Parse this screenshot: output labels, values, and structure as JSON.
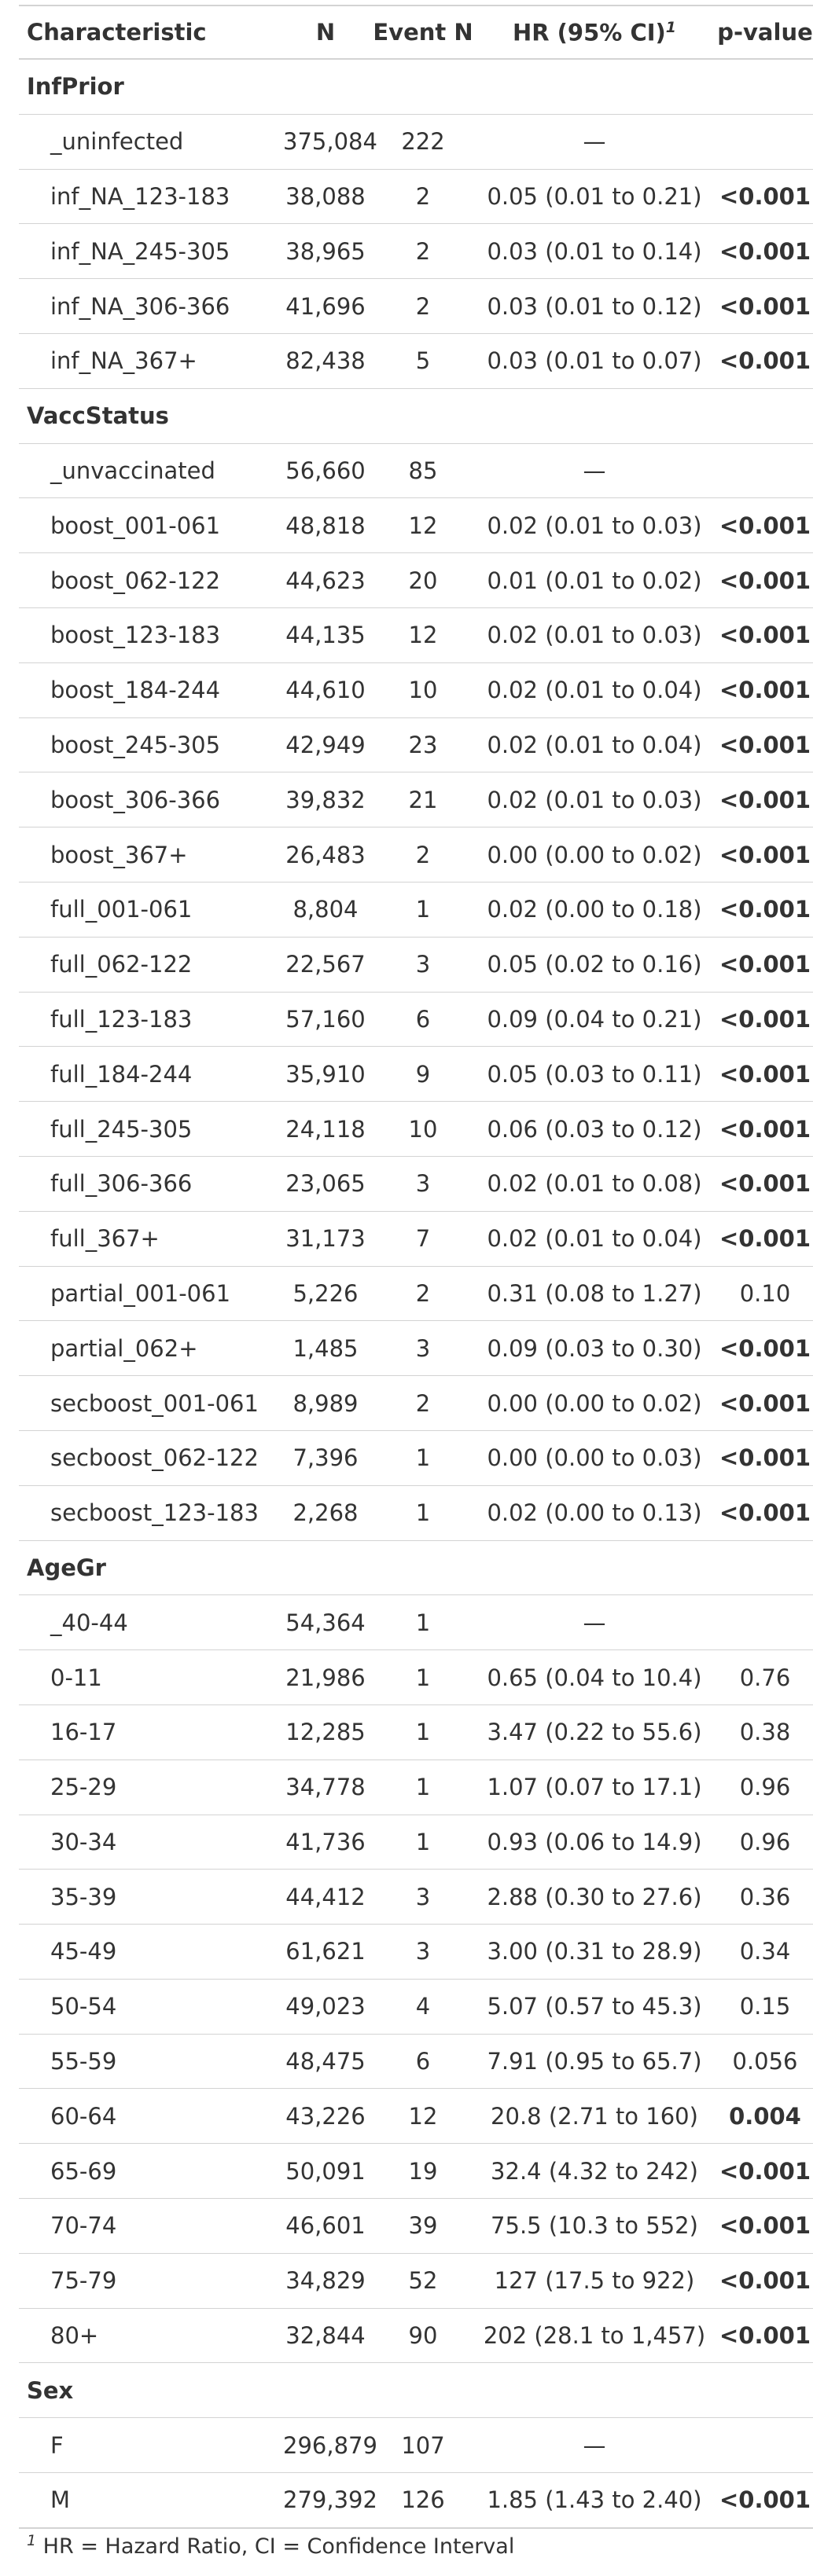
{
  "header": {
    "characteristic": "Characteristic",
    "n": "N",
    "event_n": "Event N",
    "hr": "HR (95% CI)",
    "hr_footnote_mark": "1",
    "p_value": "p-value"
  },
  "rows": [
    {
      "group": "InfPrior"
    },
    {
      "label": "_uninfected",
      "n": "375,084",
      "event": "222",
      "hr": "—",
      "p": ""
    },
    {
      "label": "inf_NA_123-183",
      "n": "38,088",
      "event": "2",
      "hr": "0.05 (0.01 to 0.21)",
      "p": "<0.001",
      "sig": true
    },
    {
      "label": "inf_NA_245-305",
      "n": "38,965",
      "event": "2",
      "hr": "0.03 (0.01 to 0.14)",
      "p": "<0.001",
      "sig": true
    },
    {
      "label": "inf_NA_306-366",
      "n": "41,696",
      "event": "2",
      "hr": "0.03 (0.01 to 0.12)",
      "p": "<0.001",
      "sig": true
    },
    {
      "label": "inf_NA_367+",
      "n": "82,438",
      "event": "5",
      "hr": "0.03 (0.01 to 0.07)",
      "p": "<0.001",
      "sig": true
    },
    {
      "group": "VaccStatus"
    },
    {
      "label": "_unvaccinated",
      "n": "56,660",
      "event": "85",
      "hr": "—",
      "p": ""
    },
    {
      "label": "boost_001-061",
      "n": "48,818",
      "event": "12",
      "hr": "0.02 (0.01 to 0.03)",
      "p": "<0.001",
      "sig": true
    },
    {
      "label": "boost_062-122",
      "n": "44,623",
      "event": "20",
      "hr": "0.01 (0.01 to 0.02)",
      "p": "<0.001",
      "sig": true
    },
    {
      "label": "boost_123-183",
      "n": "44,135",
      "event": "12",
      "hr": "0.02 (0.01 to 0.03)",
      "p": "<0.001",
      "sig": true
    },
    {
      "label": "boost_184-244",
      "n": "44,610",
      "event": "10",
      "hr": "0.02 (0.01 to 0.04)",
      "p": "<0.001",
      "sig": true
    },
    {
      "label": "boost_245-305",
      "n": "42,949",
      "event": "23",
      "hr": "0.02 (0.01 to 0.04)",
      "p": "<0.001",
      "sig": true
    },
    {
      "label": "boost_306-366",
      "n": "39,832",
      "event": "21",
      "hr": "0.02 (0.01 to 0.03)",
      "p": "<0.001",
      "sig": true
    },
    {
      "label": "boost_367+",
      "n": "26,483",
      "event": "2",
      "hr": "0.00 (0.00 to 0.02)",
      "p": "<0.001",
      "sig": true
    },
    {
      "label": "full_001-061",
      "n": "8,804",
      "event": "1",
      "hr": "0.02 (0.00 to 0.18)",
      "p": "<0.001",
      "sig": true
    },
    {
      "label": "full_062-122",
      "n": "22,567",
      "event": "3",
      "hr": "0.05 (0.02 to 0.16)",
      "p": "<0.001",
      "sig": true
    },
    {
      "label": "full_123-183",
      "n": "57,160",
      "event": "6",
      "hr": "0.09 (0.04 to 0.21)",
      "p": "<0.001",
      "sig": true
    },
    {
      "label": "full_184-244",
      "n": "35,910",
      "event": "9",
      "hr": "0.05 (0.03 to 0.11)",
      "p": "<0.001",
      "sig": true
    },
    {
      "label": "full_245-305",
      "n": "24,118",
      "event": "10",
      "hr": "0.06 (0.03 to 0.12)",
      "p": "<0.001",
      "sig": true
    },
    {
      "label": "full_306-366",
      "n": "23,065",
      "event": "3",
      "hr": "0.02 (0.01 to 0.08)",
      "p": "<0.001",
      "sig": true
    },
    {
      "label": "full_367+",
      "n": "31,173",
      "event": "7",
      "hr": "0.02 (0.01 to 0.04)",
      "p": "<0.001",
      "sig": true
    },
    {
      "label": "partial_001-061",
      "n": "5,226",
      "event": "2",
      "hr": "0.31 (0.08 to 1.27)",
      "p": "0.10",
      "sig": false
    },
    {
      "label": "partial_062+",
      "n": "1,485",
      "event": "3",
      "hr": "0.09 (0.03 to 0.30)",
      "p": "<0.001",
      "sig": true
    },
    {
      "label": "secboost_001-061",
      "n": "8,989",
      "event": "2",
      "hr": "0.00 (0.00 to 0.02)",
      "p": "<0.001",
      "sig": true
    },
    {
      "label": "secboost_062-122",
      "n": "7,396",
      "event": "1",
      "hr": "0.00 (0.00 to 0.03)",
      "p": "<0.001",
      "sig": true
    },
    {
      "label": "secboost_123-183",
      "n": "2,268",
      "event": "1",
      "hr": "0.02 (0.00 to 0.13)",
      "p": "<0.001",
      "sig": true
    },
    {
      "group": "AgeGr"
    },
    {
      "label": "_40-44",
      "n": "54,364",
      "event": "1",
      "hr": "—",
      "p": ""
    },
    {
      "label": "0-11",
      "n": "21,986",
      "event": "1",
      "hr": "0.65 (0.04 to 10.4)",
      "p": "0.76",
      "sig": false
    },
    {
      "label": "16-17",
      "n": "12,285",
      "event": "1",
      "hr": "3.47 (0.22 to 55.6)",
      "p": "0.38",
      "sig": false
    },
    {
      "label": "25-29",
      "n": "34,778",
      "event": "1",
      "hr": "1.07 (0.07 to 17.1)",
      "p": "0.96",
      "sig": false
    },
    {
      "label": "30-34",
      "n": "41,736",
      "event": "1",
      "hr": "0.93 (0.06 to 14.9)",
      "p": "0.96",
      "sig": false
    },
    {
      "label": "35-39",
      "n": "44,412",
      "event": "3",
      "hr": "2.88 (0.30 to 27.6)",
      "p": "0.36",
      "sig": false
    },
    {
      "label": "45-49",
      "n": "61,621",
      "event": "3",
      "hr": "3.00 (0.31 to 28.9)",
      "p": "0.34",
      "sig": false
    },
    {
      "label": "50-54",
      "n": "49,023",
      "event": "4",
      "hr": "5.07 (0.57 to 45.3)",
      "p": "0.15",
      "sig": false
    },
    {
      "label": "55-59",
      "n": "48,475",
      "event": "6",
      "hr": "7.91 (0.95 to 65.7)",
      "p": "0.056",
      "sig": false
    },
    {
      "label": "60-64",
      "n": "43,226",
      "event": "12",
      "hr": "20.8 (2.71 to 160)",
      "p": "0.004",
      "sig": true
    },
    {
      "label": "65-69",
      "n": "50,091",
      "event": "19",
      "hr": "32.4 (4.32 to 242)",
      "p": "<0.001",
      "sig": true
    },
    {
      "label": "70-74",
      "n": "46,601",
      "event": "39",
      "hr": "75.5 (10.3 to 552)",
      "p": "<0.001",
      "sig": true
    },
    {
      "label": "75-79",
      "n": "34,829",
      "event": "52",
      "hr": "127 (17.5 to 922)",
      "p": "<0.001",
      "sig": true
    },
    {
      "label": "80+",
      "n": "32,844",
      "event": "90",
      "hr": "202 (28.1 to 1,457)",
      "p": "<0.001",
      "sig": true
    },
    {
      "group": "Sex"
    },
    {
      "label": "F",
      "n": "296,879",
      "event": "107",
      "hr": "—",
      "p": ""
    },
    {
      "label": "M",
      "n": "279,392",
      "event": "126",
      "hr": "1.85 (1.43 to 2.40)",
      "p": "<0.001",
      "sig": true
    }
  ],
  "footnote": {
    "mark": "1",
    "text": " HR = Hazard Ratio, CI = Confidence Interval"
  }
}
